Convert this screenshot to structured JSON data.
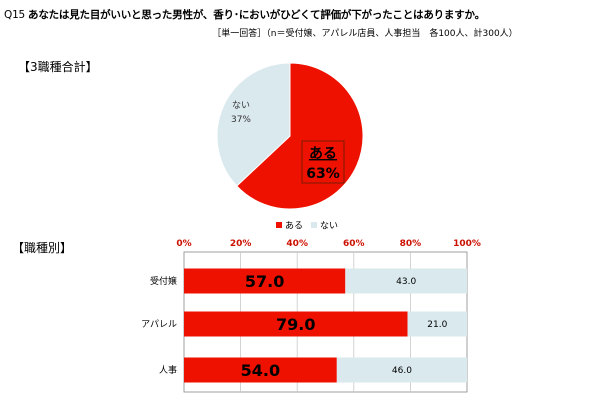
{
  "question": {
    "number": "Q15",
    "text": "あなたは見た目がいいと思った男性が、香り･においがひどくて評価が下がったことはありますか。",
    "note": "［単一回答］（n＝受付嬢、アパレル店員、人事担当　各100人、計300人）"
  },
  "sections": {
    "overall": "【3職種合計】",
    "by_job": "【職種別】"
  },
  "colors": {
    "yes": "#ee1100",
    "no": "#dae9ee",
    "tick": "#cc1100",
    "grid": "#c8c8c8"
  },
  "chart_data": [
    {
      "type": "pie",
      "title": "【3職種合計】",
      "slices": [
        {
          "label": "ある",
          "value": 63,
          "display": "63%"
        },
        {
          "label": "ない",
          "value": 37,
          "display": "37%"
        }
      ],
      "legend": [
        "ある",
        "ない"
      ],
      "legend_position": "bottom"
    },
    {
      "type": "bar",
      "orientation": "horizontal",
      "stacked": true,
      "title": "【職種別】",
      "categories": [
        "受付嬢",
        "アパレル",
        "人事"
      ],
      "series": [
        {
          "name": "ある",
          "values": [
            57.0,
            79.0,
            54.0
          ],
          "labels": [
            "57.0",
            "79.0",
            "54.0"
          ]
        },
        {
          "name": "ない",
          "values": [
            43.0,
            21.0,
            46.0
          ],
          "labels": [
            "43.0",
            "21.0",
            "46.0"
          ]
        }
      ],
      "xlim": [
        0,
        100
      ],
      "x_ticks": [
        "0%",
        "20%",
        "40%",
        "60%",
        "80%",
        "100%"
      ],
      "x_tick_position": "top",
      "grid": true
    }
  ]
}
